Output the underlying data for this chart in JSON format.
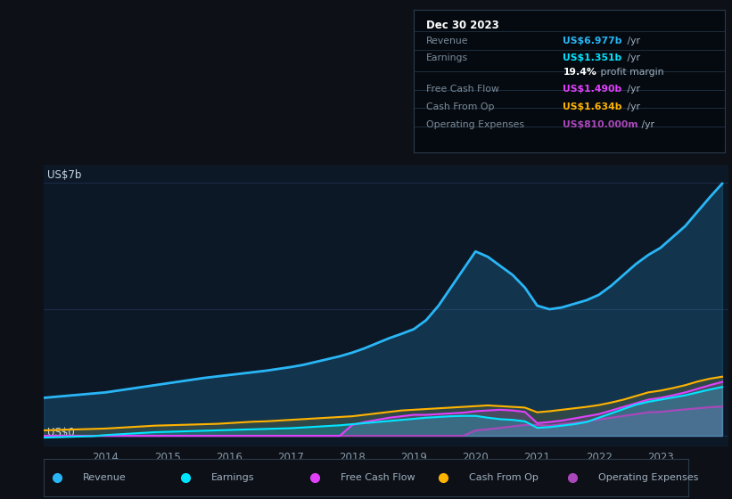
{
  "bg_color": "#0d1117",
  "plot_bg_color": "#0d1827",
  "grid_color": "#1e3050",
  "title_box": {
    "date": "Dec 30 2023",
    "rows": [
      {
        "label": "Revenue",
        "value_colored": "US$6.977b",
        "value_color": "#29b6f6",
        "suffix": " /yr"
      },
      {
        "label": "Earnings",
        "value_colored": "US$1.351b",
        "value_color": "#00e5ff",
        "suffix": " /yr"
      },
      {
        "label": "",
        "value_colored": "19.4%",
        "value_color": "#ffffff",
        "suffix": " profit margin"
      },
      {
        "label": "Free Cash Flow",
        "value_colored": "US$1.490b",
        "value_color": "#e040fb",
        "suffix": " /yr"
      },
      {
        "label": "Cash From Op",
        "value_colored": "US$1.634b",
        "value_color": "#ffb300",
        "suffix": " /yr"
      },
      {
        "label": "Operating Expenses",
        "value_colored": "US$810.000m",
        "value_color": "#ab47bc",
        "suffix": " /yr"
      }
    ]
  },
  "ylabel_top": "US$7b",
  "ylabel_bot": "US$0",
  "series": {
    "Revenue": {
      "color": "#29b6f6",
      "lw": 2.0,
      "fill_alpha": 0.18,
      "x": [
        2013.0,
        2013.2,
        2013.4,
        2013.6,
        2013.8,
        2014.0,
        2014.2,
        2014.4,
        2014.6,
        2014.8,
        2015.0,
        2015.2,
        2015.4,
        2015.6,
        2015.8,
        2016.0,
        2016.2,
        2016.4,
        2016.6,
        2016.8,
        2017.0,
        2017.2,
        2017.4,
        2017.6,
        2017.8,
        2018.0,
        2018.2,
        2018.4,
        2018.6,
        2018.8,
        2019.0,
        2019.2,
        2019.4,
        2019.6,
        2019.8,
        2020.0,
        2020.2,
        2020.4,
        2020.6,
        2020.8,
        2021.0,
        2021.2,
        2021.4,
        2021.6,
        2021.8,
        2022.0,
        2022.2,
        2022.4,
        2022.6,
        2022.8,
        2023.0,
        2023.2,
        2023.4,
        2023.6,
        2023.8,
        2024.0
      ],
      "y": [
        1.05,
        1.08,
        1.11,
        1.14,
        1.17,
        1.2,
        1.25,
        1.3,
        1.35,
        1.4,
        1.45,
        1.5,
        1.55,
        1.6,
        1.64,
        1.68,
        1.72,
        1.76,
        1.8,
        1.85,
        1.9,
        1.96,
        2.04,
        2.12,
        2.2,
        2.3,
        2.42,
        2.56,
        2.7,
        2.82,
        2.95,
        3.2,
        3.6,
        4.1,
        4.6,
        5.1,
        4.95,
        4.7,
        4.45,
        4.1,
        3.6,
        3.5,
        3.55,
        3.65,
        3.75,
        3.9,
        4.15,
        4.45,
        4.75,
        5.0,
        5.2,
        5.5,
        5.8,
        6.2,
        6.6,
        6.977
      ]
    },
    "Earnings": {
      "color": "#00e5ff",
      "lw": 1.5,
      "fill_alpha": 0.22,
      "x": [
        2013.0,
        2013.2,
        2013.4,
        2013.6,
        2013.8,
        2014.0,
        2014.2,
        2014.4,
        2014.6,
        2014.8,
        2015.0,
        2015.2,
        2015.4,
        2015.6,
        2015.8,
        2016.0,
        2016.2,
        2016.4,
        2016.6,
        2016.8,
        2017.0,
        2017.2,
        2017.4,
        2017.6,
        2017.8,
        2018.0,
        2018.2,
        2018.4,
        2018.6,
        2018.8,
        2019.0,
        2019.2,
        2019.4,
        2019.6,
        2019.8,
        2020.0,
        2020.2,
        2020.4,
        2020.6,
        2020.8,
        2021.0,
        2021.2,
        2021.4,
        2021.6,
        2021.8,
        2022.0,
        2022.2,
        2022.4,
        2022.6,
        2022.8,
        2023.0,
        2023.2,
        2023.4,
        2023.6,
        2023.8,
        2024.0
      ],
      "y": [
        -0.05,
        -0.04,
        -0.03,
        -0.02,
        -0.01,
        0.02,
        0.04,
        0.06,
        0.08,
        0.1,
        0.11,
        0.12,
        0.13,
        0.14,
        0.15,
        0.16,
        0.17,
        0.18,
        0.19,
        0.2,
        0.21,
        0.23,
        0.25,
        0.27,
        0.29,
        0.32,
        0.35,
        0.38,
        0.41,
        0.44,
        0.47,
        0.5,
        0.52,
        0.54,
        0.55,
        0.55,
        0.5,
        0.46,
        0.44,
        0.4,
        0.22,
        0.24,
        0.28,
        0.32,
        0.38,
        0.5,
        0.62,
        0.74,
        0.86,
        0.94,
        1.0,
        1.06,
        1.12,
        1.2,
        1.28,
        1.351
      ]
    },
    "Free Cash Flow": {
      "color": "#e040fb",
      "lw": 1.5,
      "fill_alpha": 0.18,
      "x": [
        2013.0,
        2013.2,
        2013.4,
        2013.6,
        2013.8,
        2014.0,
        2014.2,
        2014.4,
        2014.6,
        2014.8,
        2015.0,
        2015.2,
        2015.4,
        2015.6,
        2015.8,
        2016.0,
        2016.2,
        2016.4,
        2016.6,
        2016.8,
        2017.0,
        2017.2,
        2017.4,
        2017.6,
        2017.8,
        2018.0,
        2018.2,
        2018.4,
        2018.6,
        2018.8,
        2019.0,
        2019.2,
        2019.4,
        2019.6,
        2019.8,
        2020.0,
        2020.2,
        2020.4,
        2020.6,
        2020.8,
        2021.0,
        2021.2,
        2021.4,
        2021.6,
        2021.8,
        2022.0,
        2022.2,
        2022.4,
        2022.6,
        2022.8,
        2023.0,
        2023.2,
        2023.4,
        2023.6,
        2023.8,
        2024.0
      ],
      "y": [
        0.0,
        0.0,
        0.0,
        0.0,
        0.0,
        0.0,
        0.0,
        0.0,
        0.0,
        0.0,
        0.0,
        0.0,
        0.0,
        0.0,
        0.0,
        0.0,
        0.0,
        0.0,
        0.0,
        0.0,
        0.0,
        0.0,
        0.0,
        0.0,
        0.0,
        0.3,
        0.38,
        0.44,
        0.5,
        0.54,
        0.58,
        0.58,
        0.6,
        0.62,
        0.64,
        0.68,
        0.7,
        0.72,
        0.7,
        0.66,
        0.35,
        0.38,
        0.42,
        0.48,
        0.54,
        0.6,
        0.7,
        0.8,
        0.9,
        1.0,
        1.05,
        1.12,
        1.2,
        1.3,
        1.4,
        1.49
      ]
    },
    "Cash From Op": {
      "color": "#ffb300",
      "lw": 1.5,
      "fill_alpha": 0.15,
      "x": [
        2013.0,
        2013.2,
        2013.4,
        2013.6,
        2013.8,
        2014.0,
        2014.2,
        2014.4,
        2014.6,
        2014.8,
        2015.0,
        2015.2,
        2015.4,
        2015.6,
        2015.8,
        2016.0,
        2016.2,
        2016.4,
        2016.6,
        2016.8,
        2017.0,
        2017.2,
        2017.4,
        2017.6,
        2017.8,
        2018.0,
        2018.2,
        2018.4,
        2018.6,
        2018.8,
        2019.0,
        2019.2,
        2019.4,
        2019.6,
        2019.8,
        2020.0,
        2020.2,
        2020.4,
        2020.6,
        2020.8,
        2021.0,
        2021.2,
        2021.4,
        2021.6,
        2021.8,
        2022.0,
        2022.2,
        2022.4,
        2022.6,
        2022.8,
        2023.0,
        2023.2,
        2023.4,
        2023.6,
        2023.8,
        2024.0
      ],
      "y": [
        0.15,
        0.16,
        0.17,
        0.18,
        0.19,
        0.2,
        0.22,
        0.24,
        0.26,
        0.28,
        0.29,
        0.3,
        0.31,
        0.32,
        0.33,
        0.35,
        0.37,
        0.39,
        0.4,
        0.42,
        0.44,
        0.46,
        0.48,
        0.5,
        0.52,
        0.54,
        0.58,
        0.62,
        0.66,
        0.7,
        0.72,
        0.74,
        0.76,
        0.78,
        0.8,
        0.82,
        0.84,
        0.82,
        0.8,
        0.78,
        0.65,
        0.68,
        0.72,
        0.76,
        0.8,
        0.85,
        0.92,
        1.0,
        1.1,
        1.2,
        1.25,
        1.32,
        1.4,
        1.5,
        1.58,
        1.634
      ]
    },
    "Operating Expenses": {
      "color": "#ab47bc",
      "lw": 1.5,
      "fill_alpha": 0.22,
      "x": [
        2013.0,
        2013.2,
        2013.4,
        2013.6,
        2013.8,
        2014.0,
        2014.2,
        2014.4,
        2014.6,
        2014.8,
        2015.0,
        2015.2,
        2015.4,
        2015.6,
        2015.8,
        2016.0,
        2016.2,
        2016.4,
        2016.6,
        2016.8,
        2017.0,
        2017.2,
        2017.4,
        2017.6,
        2017.8,
        2018.0,
        2018.2,
        2018.4,
        2018.6,
        2018.8,
        2019.0,
        2019.2,
        2019.4,
        2019.6,
        2019.8,
        2020.0,
        2020.2,
        2020.4,
        2020.6,
        2020.8,
        2021.0,
        2021.2,
        2021.4,
        2021.6,
        2021.8,
        2022.0,
        2022.2,
        2022.4,
        2022.6,
        2022.8,
        2023.0,
        2023.2,
        2023.4,
        2023.6,
        2023.8,
        2024.0
      ],
      "y": [
        0.0,
        0.0,
        0.0,
        0.0,
        0.0,
        0.0,
        0.0,
        0.0,
        0.0,
        0.0,
        0.0,
        0.0,
        0.0,
        0.0,
        0.0,
        0.0,
        0.0,
        0.0,
        0.0,
        0.0,
        0.0,
        0.0,
        0.0,
        0.0,
        0.0,
        0.0,
        0.0,
        0.0,
        0.0,
        0.0,
        0.0,
        0.0,
        0.0,
        0.0,
        0.0,
        0.15,
        0.18,
        0.22,
        0.26,
        0.3,
        0.3,
        0.28,
        0.32,
        0.36,
        0.4,
        0.45,
        0.5,
        0.55,
        0.6,
        0.65,
        0.66,
        0.7,
        0.73,
        0.76,
        0.79,
        0.81
      ]
    }
  },
  "xticks": [
    2014,
    2015,
    2016,
    2017,
    2018,
    2019,
    2020,
    2021,
    2022,
    2023
  ],
  "ylim": [
    -0.3,
    7.5
  ],
  "xmin": 2013.0,
  "xmax": 2024.1,
  "legend": [
    {
      "label": "Revenue",
      "color": "#29b6f6"
    },
    {
      "label": "Earnings",
      "color": "#00e5ff"
    },
    {
      "label": "Free Cash Flow",
      "color": "#e040fb"
    },
    {
      "label": "Cash From Op",
      "color": "#ffb300"
    },
    {
      "label": "Operating Expenses",
      "color": "#ab47bc"
    }
  ]
}
